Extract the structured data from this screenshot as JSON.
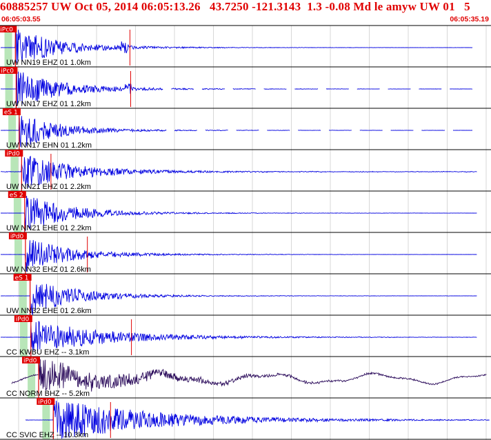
{
  "header": {
    "title": "60885257 UW Oct 05, 2014 06:05:13.26   43.7250 -121.3143  1.3 -0.08 Md le amyw UW 01   5",
    "start_time": "06:05:03.55",
    "end_time": "06:05:35.19"
  },
  "colors": {
    "title": "#e00000",
    "trace": "#0000e0",
    "broadband_trace": "#2a0a5a",
    "pick": "#e00000",
    "window": "#b8e6b8",
    "divider": "#000000",
    "grid": "#bdbdbd"
  },
  "traces": [
    {
      "label": "UW NN19 EHZ 01 1.0km",
      "pick": "iPc0",
      "window_s": 0.35,
      "p_s": 0.95,
      "s_s": 8.0,
      "mark_s": 7.4,
      "p_amp": 1.0,
      "coda": 0.25,
      "noise": 0.03,
      "dashed": false,
      "broadband": false,
      "start_s": 0.0,
      "end_s": 30.5
    },
    {
      "label": "UW NN17 EHZ 01 1.2km",
      "pick": "iPc0",
      "window_s": 0.35,
      "p_s": 1.0,
      "s_s": 8.2,
      "mark_s": 7.4,
      "p_amp": 1.0,
      "coda": 0.25,
      "noise": 0.03,
      "dashed": true,
      "broadband": false,
      "start_s": 0.0,
      "end_s": 30.5
    },
    {
      "label": "UW NN17 EHN 01 1.2km",
      "pick": "eS 1",
      "window_s": 0.35,
      "p_s": 1.2,
      "s_s": 0.0,
      "mark_s": 0.0,
      "p_amp": 1.0,
      "coda": 0.2,
      "noise": 0.03,
      "dashed": true,
      "broadband": false,
      "start_s": 0.0,
      "end_s": 30.5
    },
    {
      "label": "UW NN21 EHZ 01 2.2km",
      "pick": "iPd0",
      "window_s": 0.35,
      "p_s": 1.35,
      "s_s": 0.0,
      "mark_s": 1.9,
      "p_amp": 0.9,
      "coda": 0.35,
      "noise": 0.1,
      "dashed": false,
      "broadband": false,
      "start_s": 0.0,
      "end_s": 30.8
    },
    {
      "label": "UW NN21 EHE 01 2.2km",
      "pick": "eS 2",
      "window_s": 0.35,
      "p_s": 1.55,
      "s_s": 0.0,
      "mark_s": 0.0,
      "p_amp": 1.0,
      "coda": 0.25,
      "noise": 0.03,
      "dashed": false,
      "broadband": false,
      "start_s": 0.0,
      "end_s": 30.8
    },
    {
      "label": "UW NN32 EHZ 01 2.6km",
      "pick": "iPd0",
      "window_s": 0.35,
      "p_s": 1.6,
      "s_s": 0.0,
      "mark_s": 4.0,
      "p_amp": 0.9,
      "coda": 0.25,
      "noise": 0.03,
      "dashed": false,
      "broadband": false,
      "start_s": 0.0,
      "end_s": 30.8
    },
    {
      "label": "UW NN32 EHE 01 2.6km",
      "pick": "eS 1",
      "window_s": 0.35,
      "p_s": 1.9,
      "s_s": 0.0,
      "mark_s": 0.0,
      "p_amp": 1.0,
      "coda": 0.25,
      "noise": 0.03,
      "dashed": false,
      "broadband": false,
      "start_s": 0.0,
      "end_s": 30.8
    },
    {
      "label": "CC KWBU EHZ -- 3.1km",
      "pick": "iPd0",
      "window_s": 0.35,
      "p_s": 1.95,
      "s_s": 0.0,
      "mark_s": 6.5,
      "p_amp": 0.85,
      "coda": 0.5,
      "noise": 0.04,
      "dashed": false,
      "broadband": false,
      "start_s": 0.0,
      "end_s": 30.8
    },
    {
      "label": "CC NORM BHZ -- 5.2km",
      "pick": "iPd0",
      "window_s": 0.35,
      "p_s": 2.45,
      "s_s": 0.0,
      "mark_s": 0.0,
      "p_amp": 0.8,
      "coda": 0.6,
      "noise": 0.25,
      "dashed": false,
      "broadband": true,
      "start_s": 0.7,
      "end_s": 31.4
    },
    {
      "label": "CC SVIC EHZ -- 10.3km",
      "pick": "iPd0",
      "window_s": 0.35,
      "p_s": 3.4,
      "s_s": 0.0,
      "mark_s": 3.7,
      "p_amp": 1.0,
      "coda": 0.8,
      "noise": 0.05,
      "dashed": false,
      "broadband": false,
      "start_s": 1.6,
      "end_s": 31.6
    }
  ]
}
